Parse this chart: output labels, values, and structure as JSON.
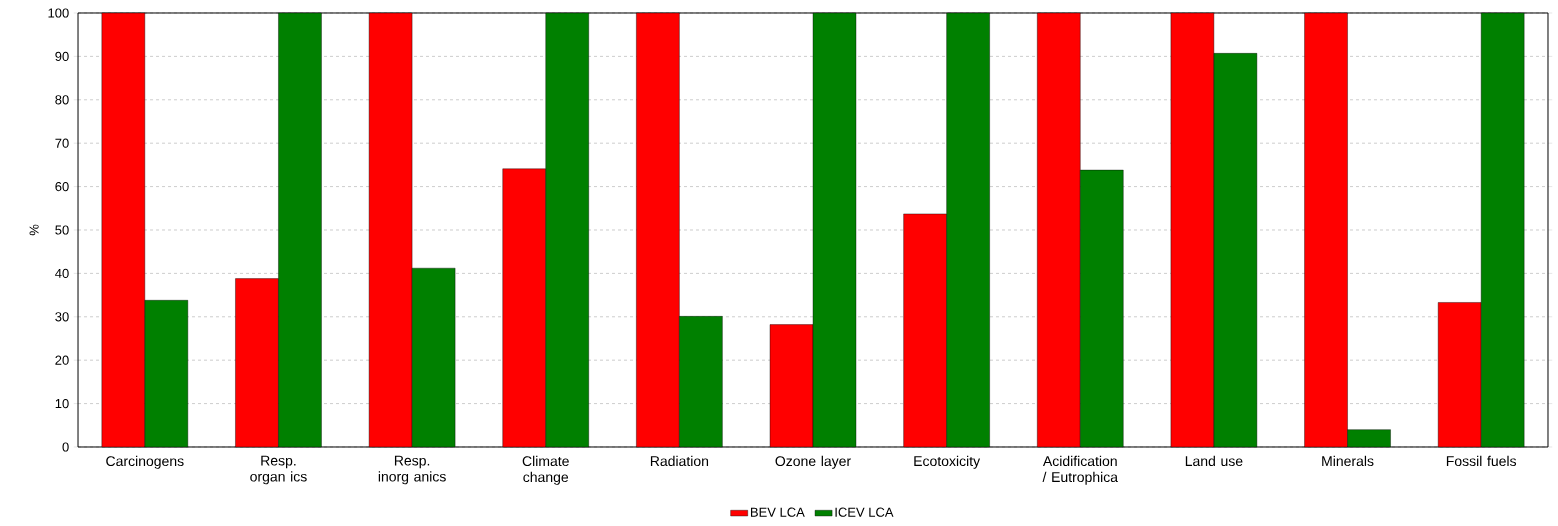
{
  "chart_data": {
    "type": "bar",
    "ylabel": "%",
    "categories": [
      "Carcinogens",
      "Resp. organ ics",
      "Resp. inorg anics",
      "Climate change",
      "Radiation",
      "Ozone layer",
      "Ecotoxicity",
      "Acidification / Eutrophica",
      "Land use",
      "Minerals",
      "Fossil fuels"
    ],
    "series": [
      {
        "name": "BEV LCA",
        "color": "#ff0000",
        "values": [
          100,
          38.8,
          100,
          64.1,
          100,
          28.2,
          53.7,
          100,
          100,
          100,
          33.3
        ]
      },
      {
        "name": "ICEV LCA",
        "color": "#008000",
        "values": [
          33.8,
          100,
          41.2,
          100,
          30.1,
          100,
          100,
          63.8,
          90.7,
          4.0,
          100
        ]
      }
    ],
    "ylim": [
      0,
      100
    ],
    "yticks": [
      0,
      10,
      20,
      30,
      40,
      50,
      60,
      70,
      80,
      90,
      100
    ],
    "grid": "y",
    "legend": "bottom"
  }
}
